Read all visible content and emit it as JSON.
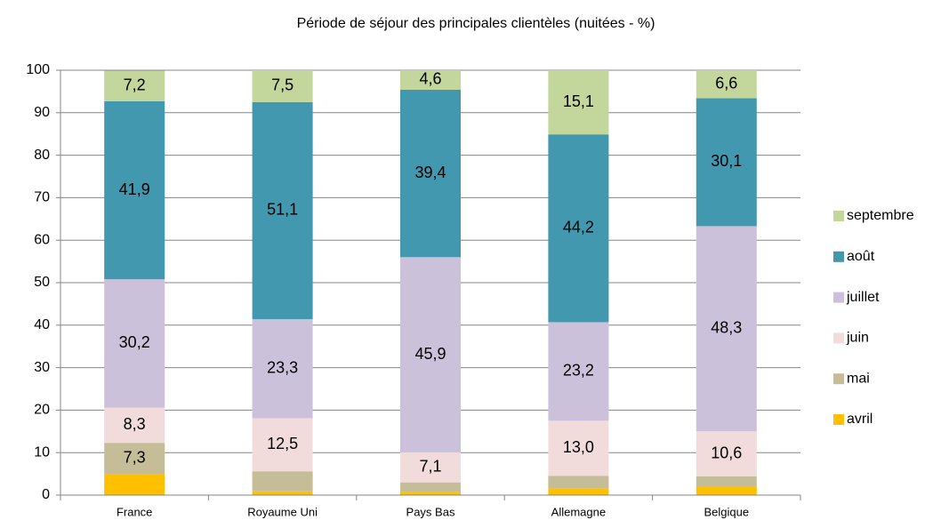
{
  "chart_data": {
    "type": "bar",
    "stacked": true,
    "title": "Période de séjour des principales clientèles (nuitées - %)",
    "categories": [
      "France",
      "Royaume Uni",
      "Pays Bas",
      "Allemagne",
      "Belgique"
    ],
    "series": [
      {
        "name": "avril",
        "color": "#ffc000",
        "values": [
          5.0,
          0.9,
          0.7,
          1.5,
          2.0
        ],
        "value_labels": [
          null,
          null,
          null,
          null,
          null
        ]
      },
      {
        "name": "mai",
        "color": "#c4bd97",
        "values": [
          7.3,
          4.7,
          2.3,
          3.0,
          2.4
        ],
        "value_labels": [
          "7,3",
          null,
          null,
          null,
          null
        ]
      },
      {
        "name": "juin",
        "color": "#f2dcdb",
        "values": [
          8.3,
          12.5,
          7.1,
          13.0,
          10.6
        ],
        "value_labels": [
          "8,3",
          "12,5",
          "7,1",
          "13,0",
          "10,6"
        ]
      },
      {
        "name": "juillet",
        "color": "#ccc1da",
        "values": [
          30.2,
          23.3,
          45.9,
          23.2,
          48.3
        ],
        "value_labels": [
          "30,2",
          "23,3",
          "45,9",
          "23,2",
          "48,3"
        ]
      },
      {
        "name": "août",
        "color": "#4198af",
        "values": [
          41.9,
          51.1,
          39.4,
          44.2,
          30.1
        ],
        "value_labels": [
          "41,9",
          "51,1",
          "39,4",
          "44,2",
          "30,1"
        ]
      },
      {
        "name": "septembre",
        "color": "#c3d69b",
        "values": [
          7.2,
          7.5,
          4.6,
          15.1,
          6.6
        ],
        "value_labels": [
          "7,2",
          "7,5",
          "4,6",
          "15,1",
          "6,6"
        ]
      }
    ],
    "ylim": [
      0,
      100
    ],
    "yticks": [
      0,
      10,
      20,
      30,
      40,
      50,
      60,
      70,
      80,
      90,
      100
    ],
    "grid": true,
    "legend": "right"
  }
}
